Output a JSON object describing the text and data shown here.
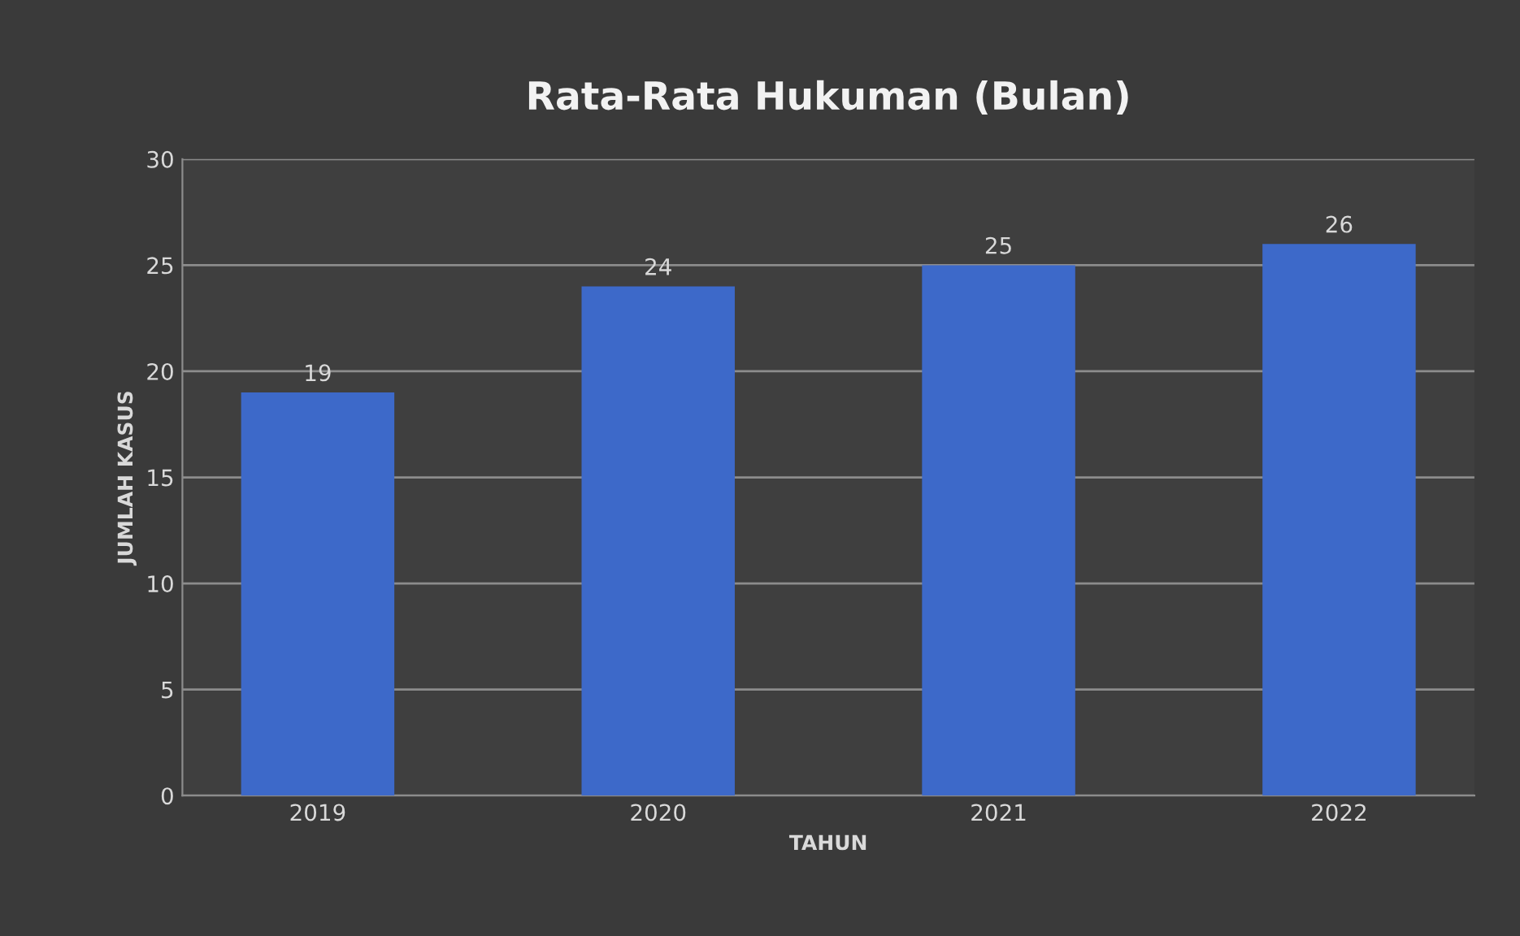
{
  "chart_data": {
    "type": "bar",
    "title": "Rata-Rata Hukuman (Bulan)",
    "xlabel": "TAHUN",
    "ylabel": "JUMLAH KASUS",
    "categories": [
      "2019",
      "2020",
      "2021",
      "2022"
    ],
    "values": [
      19,
      24,
      25,
      26
    ],
    "color": "#3d69c9",
    "ylim": [
      0,
      30
    ],
    "yticks": [
      0,
      5,
      10,
      15,
      20,
      25,
      30
    ],
    "grid": "y",
    "data_labels": true
  }
}
